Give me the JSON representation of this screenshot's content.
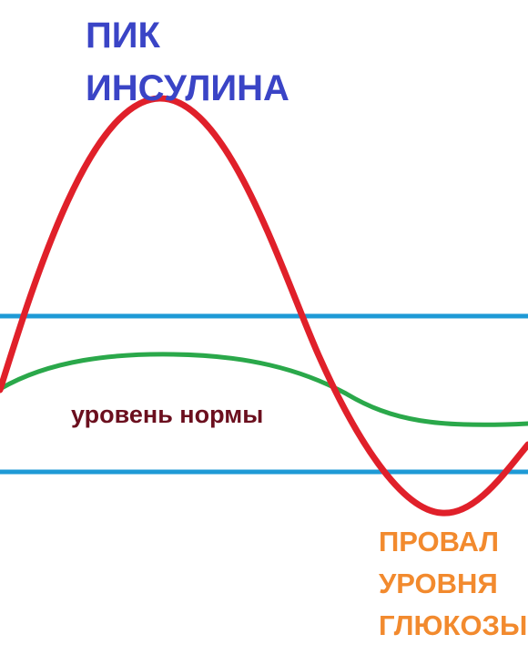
{
  "colors": {
    "background": "#ffffff",
    "insulin_curve": "#e0202a",
    "glucose_curve": "#2aa84a",
    "norm_bounds": "#1e9ad6",
    "peak_label": "#3a44c6",
    "norm_label": "#6b0f1e",
    "drop_label": "#f28a2e"
  },
  "labels": {
    "peak": [
      "ПИК",
      "ИНСУЛИНА"
    ],
    "norm": "уровень нормы",
    "drop": [
      "ПРОВАЛ",
      "УРОВНЯ",
      "ГЛЮКОЗЫ"
    ]
  }
}
